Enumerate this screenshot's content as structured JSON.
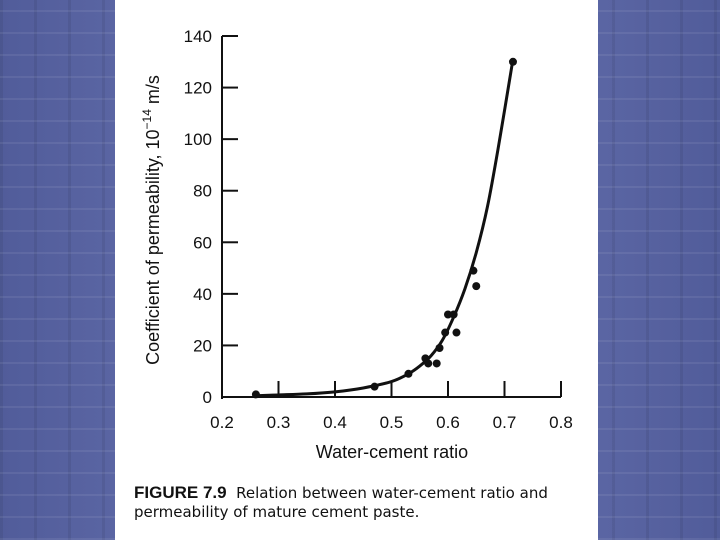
{
  "chart_data": {
    "type": "scatter",
    "xlabel": "Water-cement ratio",
    "ylabel_prefix": "Coefficient of permeability, 10",
    "ylabel_exp": "−14",
    "ylabel_unit": " m/s",
    "xlim": [
      0.2,
      0.8
    ],
    "ylim": [
      0,
      140
    ],
    "x_ticks": [
      0.3,
      0.4,
      0.5,
      0.6,
      0.7,
      0.8
    ],
    "x_tick_labels": [
      "0.2",
      "0.3",
      "0.4",
      "0.5",
      "0.6",
      "0.7",
      "0.8"
    ],
    "y_ticks": [
      0,
      20,
      40,
      60,
      80,
      100,
      120,
      140
    ],
    "y_tick_labels": [
      "0",
      "20",
      "40",
      "60",
      "80",
      "100",
      "120",
      "140"
    ],
    "points": [
      {
        "x": 0.26,
        "y": 1
      },
      {
        "x": 0.47,
        "y": 4
      },
      {
        "x": 0.53,
        "y": 9
      },
      {
        "x": 0.56,
        "y": 15
      },
      {
        "x": 0.565,
        "y": 13
      },
      {
        "x": 0.58,
        "y": 13
      },
      {
        "x": 0.585,
        "y": 19
      },
      {
        "x": 0.595,
        "y": 25
      },
      {
        "x": 0.6,
        "y": 32
      },
      {
        "x": 0.61,
        "y": 32
      },
      {
        "x": 0.615,
        "y": 25
      },
      {
        "x": 0.645,
        "y": 49
      },
      {
        "x": 0.65,
        "y": 43
      },
      {
        "x": 0.715,
        "y": 130
      }
    ],
    "curve": [
      {
        "x": 0.26,
        "y": 0.5
      },
      {
        "x": 0.3,
        "y": 0.8
      },
      {
        "x": 0.35,
        "y": 1.2
      },
      {
        "x": 0.4,
        "y": 2
      },
      {
        "x": 0.45,
        "y": 3.5
      },
      {
        "x": 0.5,
        "y": 6
      },
      {
        "x": 0.53,
        "y": 9
      },
      {
        "x": 0.55,
        "y": 12
      },
      {
        "x": 0.57,
        "y": 16
      },
      {
        "x": 0.59,
        "y": 22
      },
      {
        "x": 0.61,
        "y": 31
      },
      {
        "x": 0.63,
        "y": 42
      },
      {
        "x": 0.65,
        "y": 56
      },
      {
        "x": 0.67,
        "y": 74
      },
      {
        "x": 0.69,
        "y": 98
      },
      {
        "x": 0.715,
        "y": 131
      }
    ]
  },
  "caption": {
    "figure_label": "FIGURE 7.9",
    "text": "Relation between water-cement ratio and permeability of mature cement paste."
  },
  "colors": {
    "ink": "#111111",
    "panel": "#ffffff"
  }
}
